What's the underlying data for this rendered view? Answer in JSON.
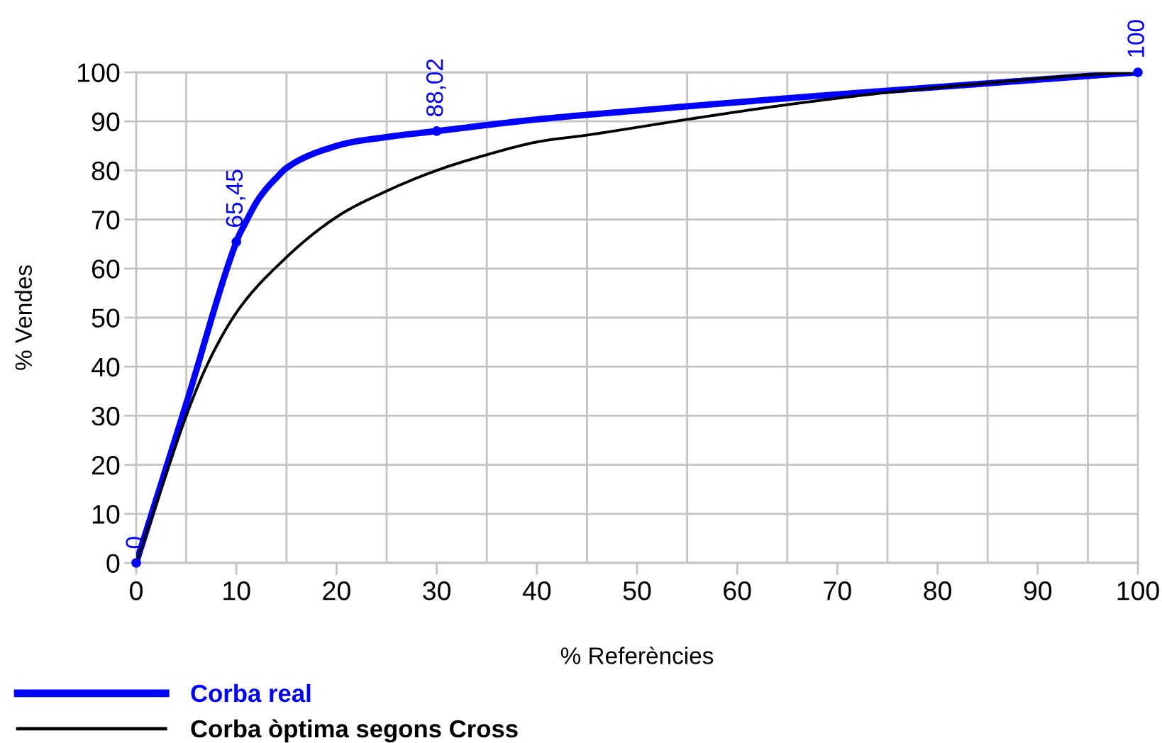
{
  "chart_data": {
    "type": "line",
    "xlabel": "% Referències",
    "ylabel": "% Vendes",
    "xlim": [
      0,
      100
    ],
    "xticks": [
      0,
      10,
      20,
      30,
      40,
      50,
      60,
      70,
      80,
      90,
      100
    ],
    "ylim": [
      0,
      100
    ],
    "yticks": [
      0,
      10,
      20,
      30,
      40,
      50,
      60,
      70,
      80,
      90,
      100
    ],
    "grid": true,
    "legend": "bottom",
    "series": [
      {
        "name": "Corba real",
        "color": "#0000ff",
        "x": [
          0,
          5,
          10,
          11,
          12,
          13,
          14,
          15,
          20,
          25,
          30,
          40,
          50,
          60,
          70,
          80,
          90,
          100
        ],
        "values": [
          0,
          32.5,
          65.45,
          69.7,
          73.5,
          76.3,
          78.5,
          80.5,
          85,
          86.8,
          88.02,
          90.4,
          92.2,
          93.9,
          95.5,
          97,
          98.5,
          100
        ]
      },
      {
        "name": "Corba òptima segons Cross",
        "color": "#000000",
        "x": [
          0,
          2,
          5,
          7,
          10,
          15,
          20,
          25,
          30,
          35,
          40,
          45,
          55,
          65,
          75,
          85,
          95,
          100
        ],
        "values": [
          0,
          12,
          30,
          40,
          51,
          62.3,
          70.5,
          75.8,
          80,
          83.2,
          85.8,
          87.2,
          90.4,
          93.4,
          95.9,
          97.8,
          99.5,
          100
        ]
      },
      {
        "type": "scatter",
        "color": "#0000ff",
        "x": [
          0,
          10,
          30,
          100
        ],
        "values": [
          0,
          65.45,
          88.02,
          100
        ],
        "marker": "circle",
        "value_labels": [
          "0",
          "65,45",
          "88,02",
          "100"
        ]
      }
    ]
  }
}
